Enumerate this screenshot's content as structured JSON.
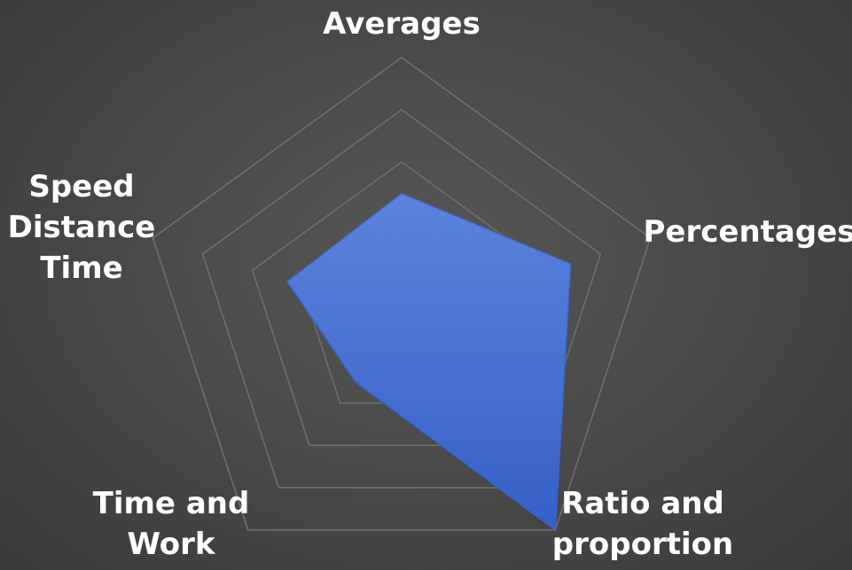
{
  "chart_data": {
    "type": "radar",
    "title": "",
    "axes": [
      {
        "label_lines": [
          "Averages"
        ]
      },
      {
        "label_lines": [
          "Percentages"
        ]
      },
      {
        "label_lines": [
          "Ratio and",
          "proportion"
        ]
      },
      {
        "label_lines": [
          "Time and",
          "Work"
        ]
      },
      {
        "label_lines": [
          "Speed",
          "Distance",
          "Time"
        ]
      }
    ],
    "series": [
      {
        "values": [
          2.4,
          3.4,
          5.0,
          1.5,
          2.3
        ],
        "color": "#4a76d8"
      }
    ],
    "rlim": [
      0,
      5
    ],
    "grid_rings": 5,
    "tick_labels_shown": false,
    "legend": "none",
    "colors": {
      "background": "#4a4a4a",
      "grid": "#6e6e6e",
      "label": "#ffffff",
      "fill_top": "#5b83dc",
      "fill_bottom": "#3560c8"
    }
  }
}
